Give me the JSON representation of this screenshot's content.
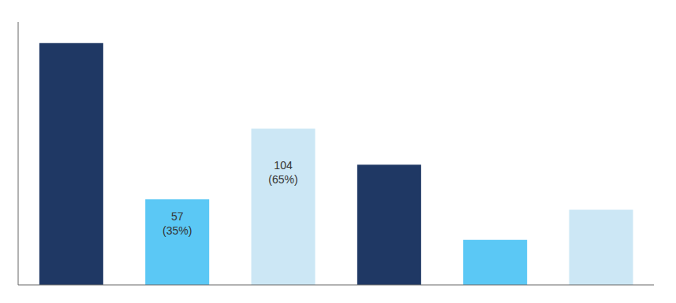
{
  "chart_data": {
    "type": "bar",
    "categories": [
      null,
      null,
      null,
      null,
      null,
      null
    ],
    "values": [
      161,
      57,
      104,
      80,
      30,
      50
    ],
    "value_labels": [
      null,
      "57\n(35%)",
      "104\n(65%)",
      null,
      null,
      null
    ],
    "colors": [
      "#1f3864",
      "#5bc8f5",
      "#cce7f5",
      "#1f3864",
      "#5bc8f5",
      "#cce7f5"
    ],
    "ylim": [
      0,
      175
    ],
    "data_labels": true,
    "tick_labels": false
  }
}
